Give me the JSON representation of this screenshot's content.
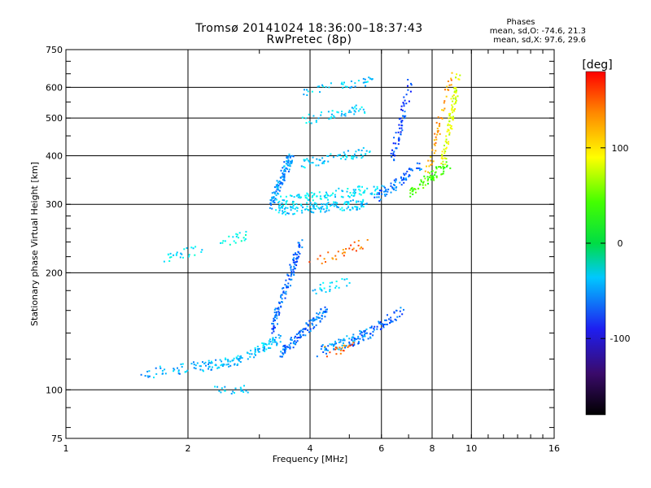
{
  "header": {
    "title": "Tromsø 20141024 18:36:00–18:37:43",
    "subtitle": "RwPretec (8p)"
  },
  "stats": {
    "heading": "Phases",
    "line_o": "mean, sd,O: -74.6, 21.3",
    "line_x": "mean, sd,X:  97.6, 29.6"
  },
  "chart_data": {
    "type": "scatter",
    "xlabel": "Frequency [MHz]",
    "ylabel": "Stationary phase Virtual Height [km]",
    "x_scale": "log",
    "y_scale": "log",
    "xlim": [
      1,
      16
    ],
    "ylim": [
      75,
      750
    ],
    "x_ticks": [
      1,
      2,
      4,
      6,
      8,
      10,
      16
    ],
    "y_ticks": [
      75,
      100,
      200,
      300,
      400,
      500,
      600,
      750
    ],
    "grid": true,
    "colorbar": {
      "label": "[deg]",
      "range": [
        -180,
        180
      ],
      "ticks": [
        100,
        0,
        -100
      ],
      "colormap": "rainbow"
    },
    "series": [
      {
        "segments": [
          {
            "x0": 1.55,
            "x1": 2.6,
            "y0": 110,
            "y1": 118,
            "phase": -85,
            "n": 90
          },
          {
            "x0": 2.6,
            "x1": 3.4,
            "y0": 118,
            "y1": 135,
            "phase": -80,
            "n": 80
          },
          {
            "x0": 3.4,
            "x1": 4.4,
            "y0": 125,
            "y1": 160,
            "phase": -105,
            "n": 120
          },
          {
            "x0": 3.2,
            "x1": 3.8,
            "y0": 140,
            "y1": 240,
            "phase": -110,
            "n": 120
          },
          {
            "x0": 4.2,
            "x1": 5.6,
            "y0": 125,
            "y1": 140,
            "phase": -95,
            "n": 70
          },
          {
            "x0": 5.0,
            "x1": 6.8,
            "y0": 130,
            "y1": 160,
            "phase": -110,
            "n": 70
          },
          {
            "x0": 3.3,
            "x1": 5.5,
            "y0": 290,
            "y1": 300,
            "phase": -75,
            "n": 140
          },
          {
            "x0": 3.3,
            "x1": 6.0,
            "y0": 305,
            "y1": 330,
            "phase": -65,
            "n": 110
          },
          {
            "x0": 3.2,
            "x1": 3.6,
            "y0": 300,
            "y1": 400,
            "phase": -95,
            "n": 110
          },
          {
            "x0": 5.8,
            "x1": 7.6,
            "y0": 310,
            "y1": 380,
            "phase": -105,
            "n": 70
          },
          {
            "x0": 6.4,
            "x1": 7.1,
            "y0": 400,
            "y1": 620,
            "phase": -120,
            "n": 60
          },
          {
            "x0": 7.0,
            "x1": 8.8,
            "y0": 320,
            "y1": 380,
            "phase": 40,
            "n": 70
          },
          {
            "x0": 8.5,
            "x1": 9.3,
            "y0": 380,
            "y1": 640,
            "phase": 90,
            "n": 90
          },
          {
            "x0": 7.8,
            "x1": 8.9,
            "y0": 360,
            "y1": 640,
            "phase": 130,
            "n": 50
          },
          {
            "x0": 3.8,
            "x1": 5.6,
            "y0": 380,
            "y1": 410,
            "phase": -75,
            "n": 60
          },
          {
            "x0": 3.7,
            "x1": 5.5,
            "y0": 490,
            "y1": 530,
            "phase": -75,
            "n": 45
          },
          {
            "x0": 3.8,
            "x1": 5.8,
            "y0": 580,
            "y1": 630,
            "phase": -75,
            "n": 40
          },
          {
            "x0": 1.75,
            "x1": 2.2,
            "y0": 220,
            "y1": 230,
            "phase": -65,
            "n": 25
          },
          {
            "x0": 2.4,
            "x1": 2.8,
            "y0": 240,
            "y1": 250,
            "phase": -55,
            "n": 20
          },
          {
            "x0": 2.3,
            "x1": 2.8,
            "y0": 100,
            "y1": 101,
            "phase": -75,
            "n": 20
          },
          {
            "x0": 4.0,
            "x1": 5.5,
            "y0": 210,
            "y1": 240,
            "phase": 145,
            "n": 30
          },
          {
            "x0": 4.0,
            "x1": 5.0,
            "y0": 180,
            "y1": 190,
            "phase": -70,
            "n": 25
          },
          {
            "x0": 4.3,
            "x1": 5.4,
            "y0": 125,
            "y1": 130,
            "phase": 150,
            "n": 20
          }
        ]
      }
    ]
  }
}
